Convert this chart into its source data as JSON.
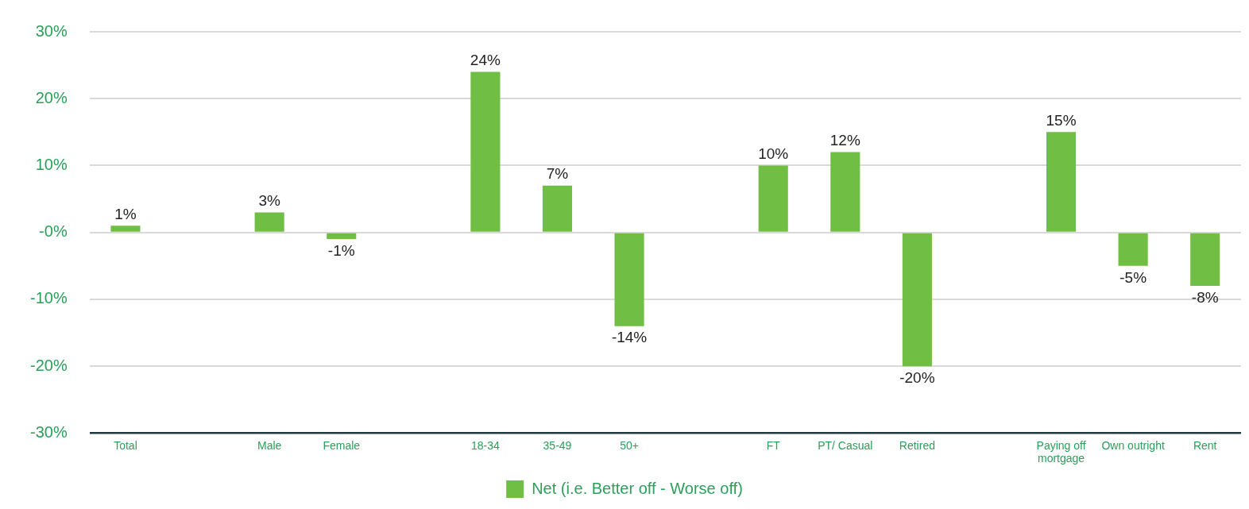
{
  "chart_data": {
    "type": "bar",
    "categories": [
      "Total",
      null,
      "Male",
      "Female",
      null,
      "18-34",
      "35-49",
      "50+",
      null,
      "FT",
      "PT/ Casual",
      "Retired",
      null,
      "Paying off mortgage",
      "Own outright",
      "Rent"
    ],
    "series": [
      {
        "name": "Net (i.e. Better off - Worse off)",
        "color": "#70bf44",
        "values": [
          1,
          null,
          3,
          -1,
          null,
          24,
          7,
          -14,
          null,
          10,
          12,
          -20,
          null,
          15,
          -5,
          -8
        ],
        "value_labels": [
          "1%",
          null,
          "3%",
          "-1%",
          null,
          "24%",
          "7%",
          "-14%",
          null,
          "10%",
          "12%",
          "-20%",
          null,
          "15%",
          "-5%",
          "-8%"
        ]
      }
    ],
    "ylim": [
      -30,
      30
    ],
    "yticks": [
      {
        "value": -30,
        "label": "-30%"
      },
      {
        "value": -20,
        "label": "-20%"
      },
      {
        "value": -10,
        "label": "-10%"
      },
      {
        "value": 0,
        "label": "-0%"
      },
      {
        "value": 10,
        "label": "10%"
      },
      {
        "value": 20,
        "label": "20%"
      },
      {
        "value": 30,
        "label": "30%"
      }
    ],
    "grid": "y",
    "legend": "bottom"
  }
}
